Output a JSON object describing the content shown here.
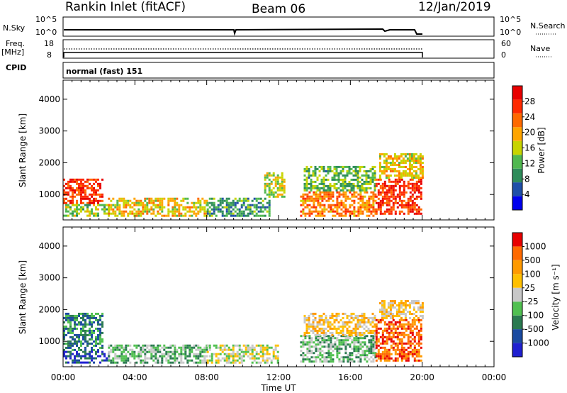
{
  "header": {
    "station": "Rankin Inlet (fitACF)",
    "beam": "Beam 06",
    "date": "12/Jan/2019"
  },
  "aux": {
    "nsky_label": "N.Sky",
    "nsky_ticks": [
      "10^5",
      "10^0"
    ],
    "nsearch_label": "N.Search",
    "nsearch_ticks": [
      "10^5",
      "10^0"
    ],
    "freq_label": "Freq.",
    "freq_unit": "[MHz]",
    "freq_ticks": [
      "18",
      "8"
    ],
    "nave_label": "Nave",
    "nave_ticks": [
      "60",
      "0"
    ],
    "cpid_label": "CPID",
    "cpid_text": "normal (fast) 151"
  },
  "colors": {
    "power": [
      "#0000ee",
      "#1f4fa8",
      "#2e8c5a",
      "#50b850",
      "#c8d400",
      "#ffa500",
      "#ff6a00",
      "#ff2a00",
      "#e80000"
    ],
    "velocity": [
      "#2020d0",
      "#1a4aa0",
      "#2a7a50",
      "#50c050",
      "#c8c8c8",
      "#ffc000",
      "#ff9a00",
      "#ff6a00",
      "#e80000"
    ]
  },
  "chart_data": [
    {
      "type": "heatmap",
      "name": "power-panel",
      "ylabel": "Slant Range [km]",
      "xlabel": "",
      "ylim": [
        200,
        4600
      ],
      "xlim": [
        "00:00",
        "24:00"
      ],
      "yticks": [
        "1000",
        "2000",
        "3000",
        "4000"
      ],
      "colorbar_label": "Power [dB]",
      "colorbar_ticks": [
        "4",
        "8",
        "12",
        "16",
        "20",
        "24",
        "28"
      ],
      "colorbar_range": [
        0,
        32
      ],
      "regions": [
        {
          "t": [
            0.0,
            2.2
          ],
          "r": [
            700,
            1500
          ],
          "level": 27
        },
        {
          "t": [
            0.0,
            2.5
          ],
          "r": [
            300,
            700
          ],
          "level": 14
        },
        {
          "t": [
            2.5,
            8.0
          ],
          "r": [
            300,
            900
          ],
          "level": 18
        },
        {
          "t": [
            8.0,
            11.5
          ],
          "r": [
            300,
            900
          ],
          "level": 10
        },
        {
          "t": [
            11.2,
            12.3
          ],
          "r": [
            900,
            1700
          ],
          "level": 16
        },
        {
          "t": [
            13.2,
            17.4
          ],
          "r": [
            350,
            1100
          ],
          "level": 22
        },
        {
          "t": [
            13.4,
            17.4
          ],
          "r": [
            1100,
            1900
          ],
          "level": 12
        },
        {
          "t": [
            17.4,
            20.0
          ],
          "r": [
            400,
            1500
          ],
          "level": 27
        },
        {
          "t": [
            17.6,
            20.0
          ],
          "r": [
            1500,
            2300
          ],
          "level": 18
        }
      ]
    },
    {
      "type": "heatmap",
      "name": "velocity-panel",
      "ylabel": "Slant Range [km]",
      "xlabel": "Time UT",
      "ylim": [
        200,
        4600
      ],
      "xlim": [
        "00:00",
        "24:00"
      ],
      "xticks": [
        "00:00",
        "04:00",
        "08:00",
        "12:00",
        "16:00",
        "20:00",
        "00:00"
      ],
      "yticks": [
        "1000",
        "2000",
        "3000",
        "4000"
      ],
      "colorbar_label": "Velocity [m s⁻¹]",
      "colorbar_ticks": [
        "-1000",
        "-500",
        "-100",
        "-25",
        "25",
        "100",
        "500",
        "1000"
      ],
      "regions": [
        {
          "t": [
            0.0,
            2.2
          ],
          "r": [
            700,
            1900
          ],
          "level": 2
        },
        {
          "t": [
            0.0,
            2.5
          ],
          "r": [
            300,
            700
          ],
          "level": 1
        },
        {
          "t": [
            2.5,
            8.0
          ],
          "r": [
            300,
            900
          ],
          "level": 3
        },
        {
          "t": [
            8.0,
            12.0
          ],
          "r": [
            300,
            900
          ],
          "level": 4
        },
        {
          "t": [
            13.2,
            17.4
          ],
          "r": [
            350,
            1200
          ],
          "level": 3
        },
        {
          "t": [
            13.4,
            17.4
          ],
          "r": [
            1200,
            1900
          ],
          "level": 5
        },
        {
          "t": [
            17.4,
            20.0
          ],
          "r": [
            400,
            1700
          ],
          "level": 7
        },
        {
          "t": [
            17.6,
            20.0
          ],
          "r": [
            1700,
            2300
          ],
          "level": 5
        }
      ]
    }
  ]
}
